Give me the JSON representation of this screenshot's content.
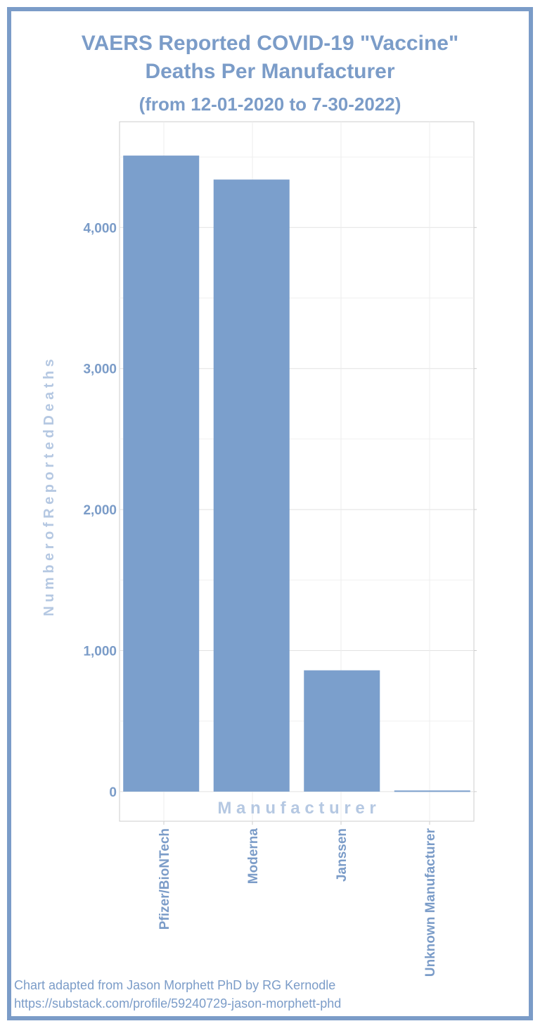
{
  "title_line1": "VAERS Reported COVID-19 \"Vaccine\"",
  "title_line2": "Deaths Per Manufacturer",
  "subtitle": "(from 12-01-2020 to 7-30-2022)",
  "footer": {
    "line1": "Chart adapted from Jason Morphett PhD  by RG Kernodle",
    "line2": "https://substack.com/profile/59240729-jason-morphett-phd"
  },
  "colors": {
    "bar": "#7b9fcc",
    "text": "#7b9cc8",
    "axis_title": "#b5c8e2",
    "frame": "#7b9cc8"
  },
  "chart_data": {
    "type": "bar",
    "title": "VAERS Reported COVID-19 \"Vaccine\" Deaths Per Manufacturer",
    "subtitle": "(from 12-01-2020 to 7-30-2022)",
    "categories": [
      "Pfizer/BioNTech",
      "Moderna",
      "Janssen",
      "Unknown Manufacturer"
    ],
    "values": [
      4510,
      4340,
      860,
      8
    ],
    "xlabel": "M a n u f a c t u r e r",
    "ylabel": "N u m b e r   o f   R e p o r t e d   D e a t h s",
    "ylim": [
      -210,
      4750
    ],
    "yticks": [
      0,
      1000,
      2000,
      3000,
      4000
    ],
    "ytick_labels": [
      "0",
      "1,000",
      "2,000",
      "3,000",
      "4,000"
    ],
    "grid": true,
    "legend": "none"
  }
}
